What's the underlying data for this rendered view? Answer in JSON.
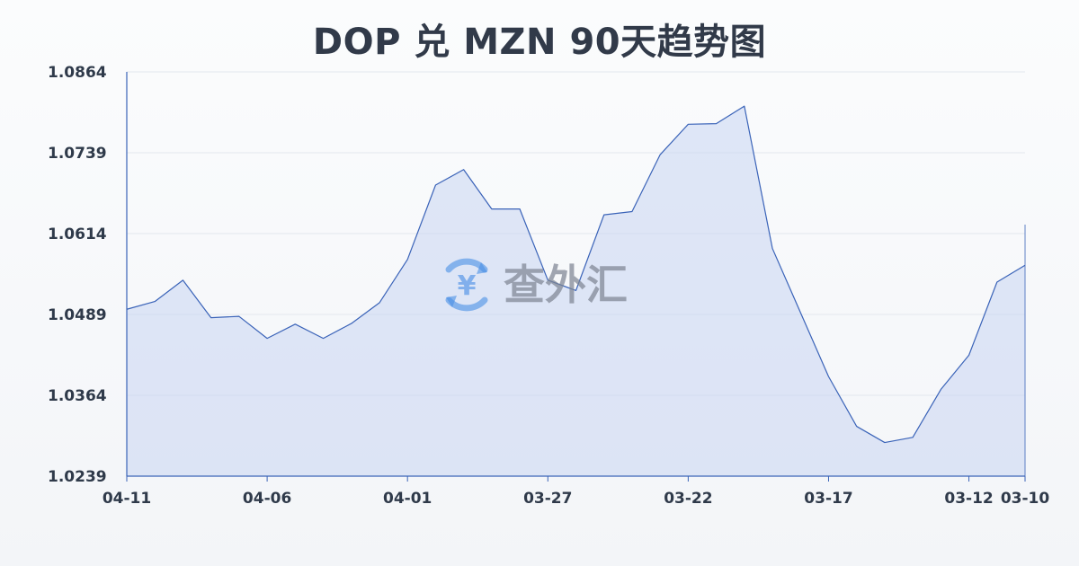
{
  "title": "DOP 兑 MZN 90天趋势图",
  "watermark": {
    "icon": "yen-cycle-icon",
    "text": "查外汇"
  },
  "chart_data": {
    "type": "area",
    "title": "DOP 兑 MZN 90天趋势图",
    "xlabel": "",
    "ylabel": "",
    "ylim": [
      1.0239,
      1.0864
    ],
    "yticks": [
      1.0864,
      1.0739,
      1.0614,
      1.0489,
      1.0364,
      1.0239
    ],
    "x_tick_labels": [
      "04-11",
      "04-06",
      "04-01",
      "03-27",
      "03-22",
      "03-17",
      "03-12",
      "03-10"
    ],
    "x_ticks_index": [
      0,
      5,
      10,
      15,
      20,
      25,
      30,
      32
    ],
    "grid": true,
    "legend": "none",
    "colors": {
      "line": "#3a63b8",
      "fill": "#c9d6f2",
      "grid": "#e3e7ee",
      "axis": "#3a63b8",
      "text": "#2f3a4a",
      "watermark": "#4a8fe6"
    },
    "x": [
      "04-11",
      "04-10",
      "04-09",
      "04-08",
      "04-07",
      "04-06",
      "04-05",
      "04-04",
      "04-03",
      "04-02",
      "04-01",
      "03-31",
      "03-30",
      "03-29",
      "03-28",
      "03-27",
      "03-26",
      "03-25",
      "03-24",
      "03-23",
      "03-22",
      "03-21",
      "03-20",
      "03-19",
      "03-18",
      "03-17",
      "03-16",
      "03-15",
      "03-14",
      "03-13",
      "03-12",
      "03-11",
      "03-10"
    ],
    "series": [
      {
        "values": [
          1.0497,
          1.0509,
          1.0542,
          1.0484,
          1.0486,
          1.0452,
          1.0474,
          1.0452,
          1.0475,
          1.0507,
          1.0574,
          1.0689,
          1.0713,
          1.0652,
          1.0652,
          1.0542,
          1.0526,
          1.0643,
          1.0648,
          1.0736,
          1.0783,
          1.0784,
          1.0811,
          1.0591,
          1.0492,
          1.0393,
          1.0316,
          1.0291,
          1.0299,
          1.0373,
          1.0426,
          1.0539,
          1.0565
        ]
      }
    ]
  }
}
